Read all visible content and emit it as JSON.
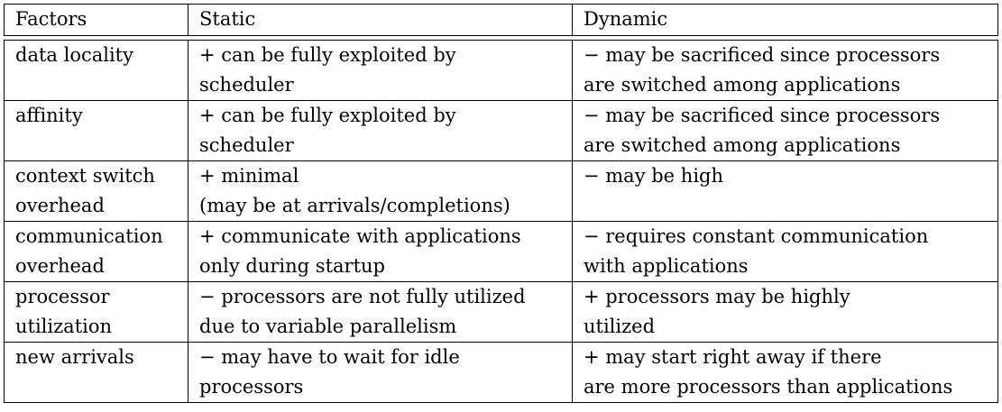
{
  "table": {
    "headers": [
      "Factors",
      "Static",
      "Dynamic"
    ],
    "rows": [
      {
        "factor": [
          "data locality"
        ],
        "static": [
          "+ can be fully exploited by",
          "scheduler"
        ],
        "dynamic": [
          "− may be sacrificed since processors",
          "are switched among applications"
        ]
      },
      {
        "factor": [
          "affinity"
        ],
        "static": [
          "+ can be fully exploited by",
          "scheduler"
        ],
        "dynamic": [
          "− may be sacrificed since processors",
          "are switched among applications"
        ]
      },
      {
        "factor": [
          "context switch",
          "overhead"
        ],
        "static": [
          "+ minimal",
          "(may be at arrivals/completions)"
        ],
        "dynamic": [
          "− may be high"
        ]
      },
      {
        "factor": [
          "communication",
          "overhead"
        ],
        "static": [
          "+ communicate with applications",
          "only during startup"
        ],
        "dynamic": [
          "− requires constant communication",
          "with applications"
        ]
      },
      {
        "factor": [
          "processor",
          "utilization"
        ],
        "static": [
          "− processors are not fully utilized",
          "due to variable parallelism"
        ],
        "dynamic": [
          "+ processors may be highly",
          "utilized"
        ]
      },
      {
        "factor": [
          "new arrivals"
        ],
        "static": [
          "− may have to wait for idle",
          "processors"
        ],
        "dynamic": [
          "+ may start right away if there",
          "are more processors than applications"
        ]
      }
    ]
  }
}
